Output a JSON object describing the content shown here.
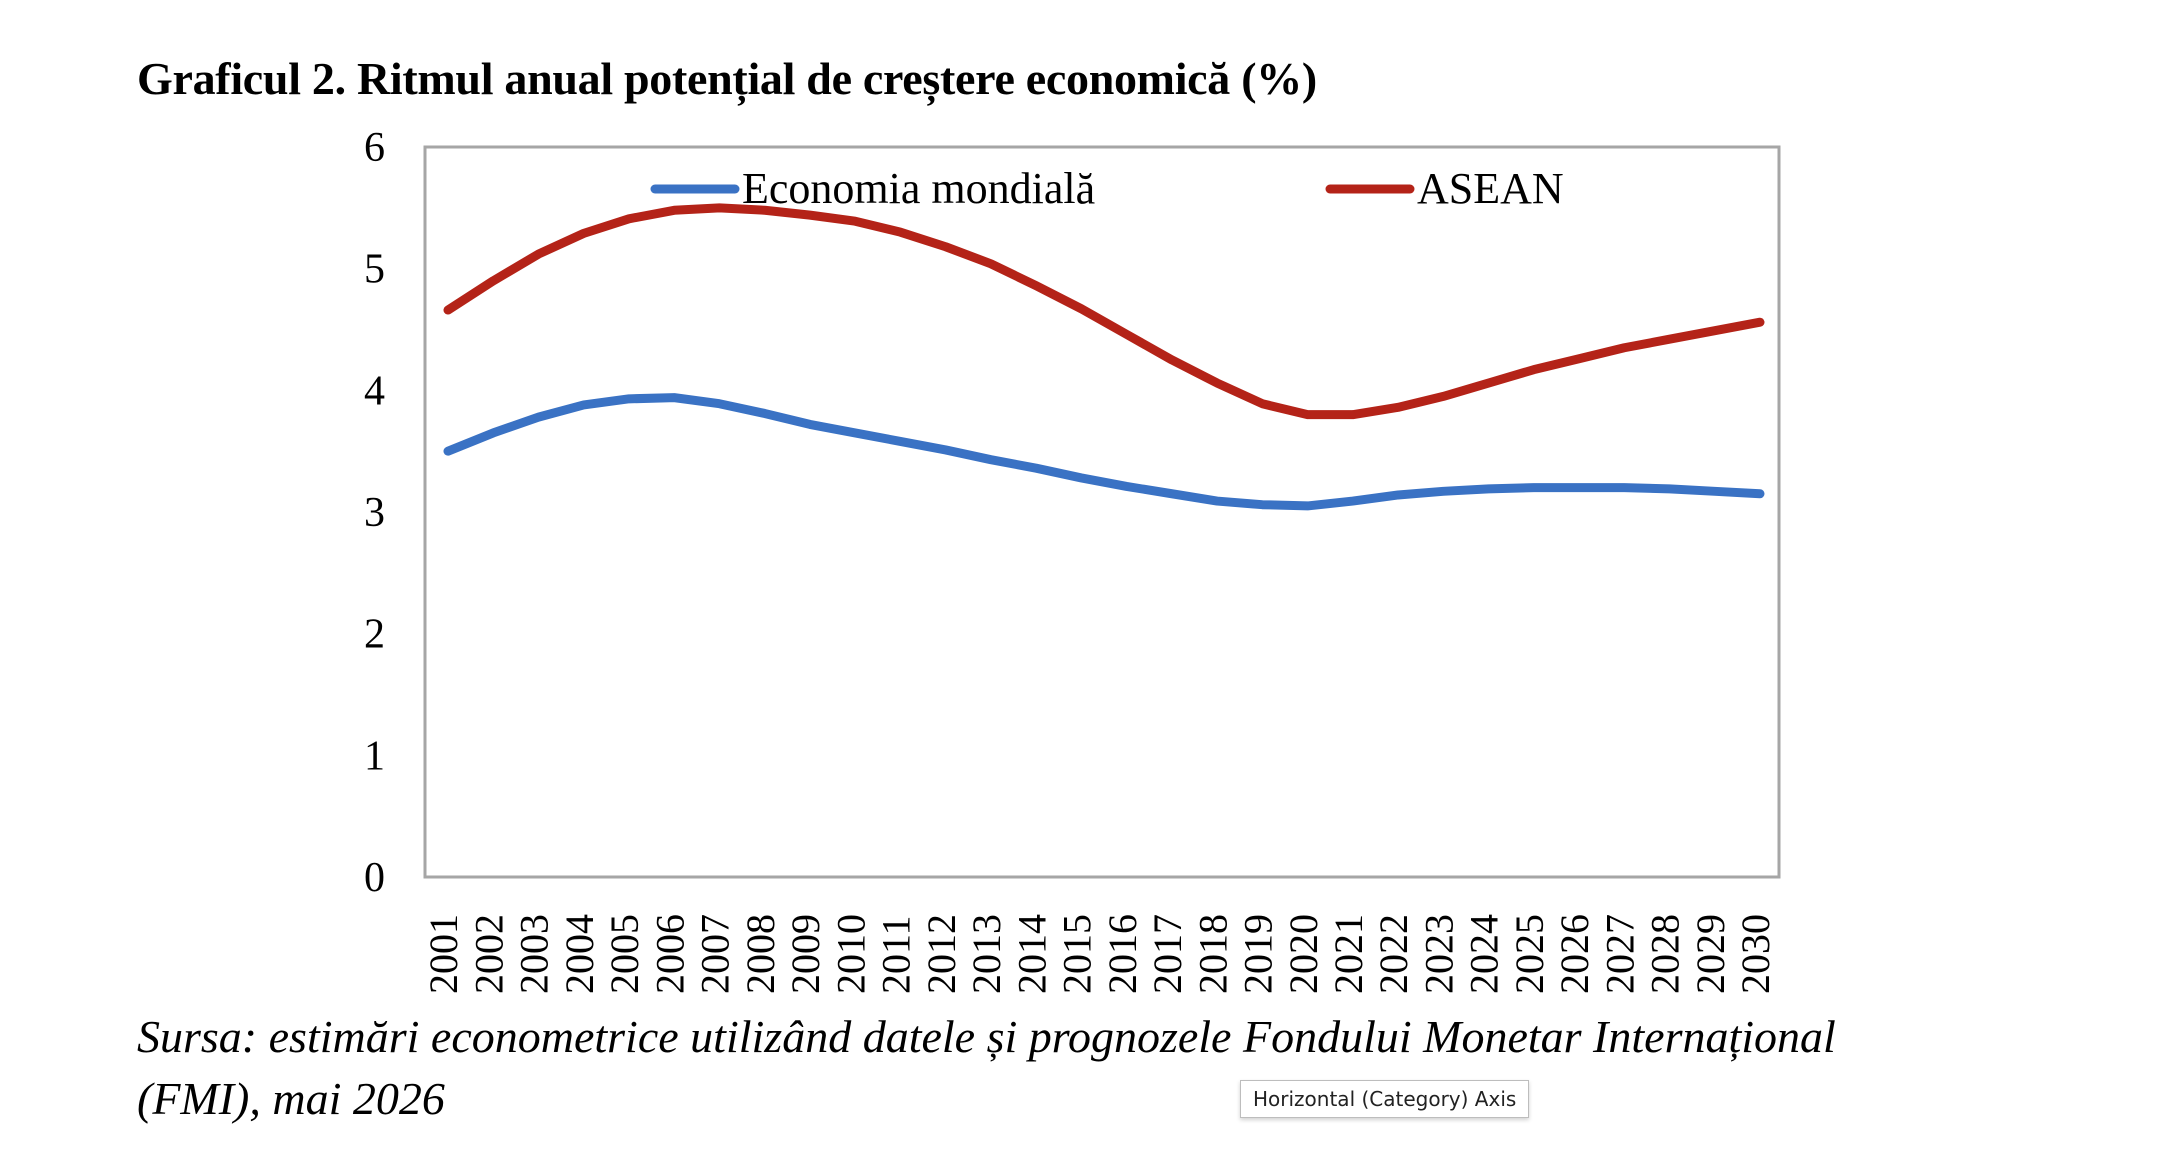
{
  "title": "Graficul 2. Ritmul anual potențial de creștere economică (%)",
  "source": {
    "line1": "Sursa: estimări econometrice utilizând datele și prognozele Fondului Monetar Internațional",
    "line2": "(FMI), mai 2026"
  },
  "tooltip": "Horizontal (Category) Axis",
  "chart_data": {
    "type": "line",
    "title": "Graficul 2. Ritmul anual potențial de creștere economică (%)",
    "categories": [
      "2001",
      "2002",
      "2003",
      "2004",
      "2005",
      "2006",
      "2007",
      "2008",
      "2009",
      "2010",
      "2011",
      "2012",
      "2013",
      "2014",
      "2015",
      "2016",
      "2017",
      "2018",
      "2019",
      "2020",
      "2021",
      "2022",
      "2023",
      "2024",
      "2025",
      "2026",
      "2027",
      "2028",
      "2029",
      "2030"
    ],
    "series": [
      {
        "name": "Economia mondială",
        "color": "#3a72c4",
        "values": [
          3.5,
          3.65,
          3.78,
          3.88,
          3.93,
          3.94,
          3.89,
          3.81,
          3.72,
          3.65,
          3.58,
          3.51,
          3.43,
          3.36,
          3.28,
          3.21,
          3.15,
          3.09,
          3.06,
          3.05,
          3.09,
          3.14,
          3.17,
          3.19,
          3.2,
          3.2,
          3.2,
          3.19,
          3.17,
          3.15
        ]
      },
      {
        "name": "ASEAN",
        "color": "#b42318",
        "values": [
          4.66,
          4.9,
          5.12,
          5.29,
          5.41,
          5.48,
          5.5,
          5.48,
          5.44,
          5.39,
          5.3,
          5.18,
          5.04,
          4.86,
          4.67,
          4.46,
          4.25,
          4.06,
          3.89,
          3.8,
          3.8,
          3.86,
          3.95,
          4.06,
          4.17,
          4.26,
          4.35,
          4.42,
          4.49,
          4.56
        ]
      }
    ],
    "yticks": [
      "0",
      "1",
      "2",
      "3",
      "4",
      "5",
      "6"
    ],
    "ylim": [
      0,
      6
    ],
    "xlabel": "",
    "ylabel": "",
    "grid": false,
    "legend": "top (inside plot)"
  }
}
